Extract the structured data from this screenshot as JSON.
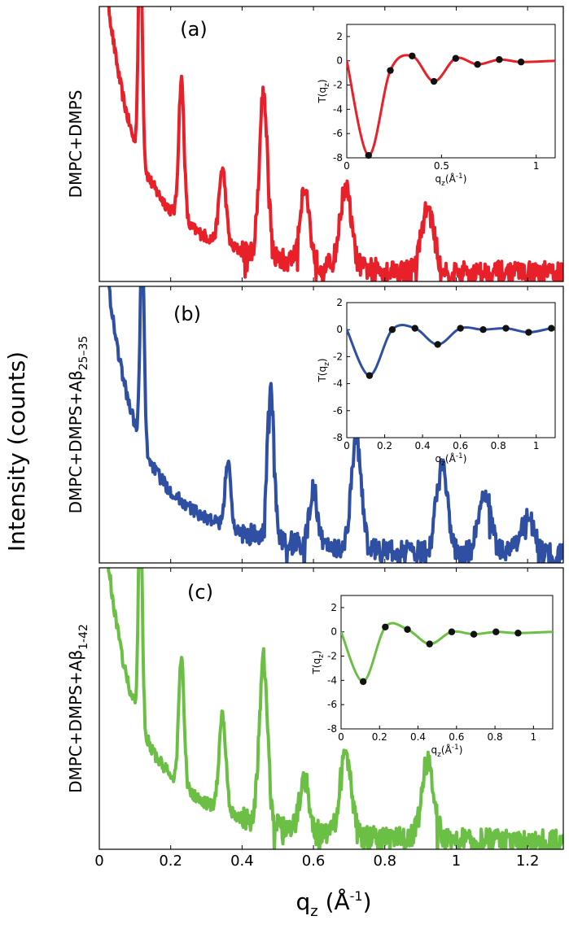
{
  "figure": {
    "ylabel": "Intensity (counts)",
    "xlabel_main": "q",
    "xlabel_sub": "z",
    "xlabel_unit_open": " (Å",
    "xlabel_unit_sup": "-1",
    "xlabel_unit_close": ")"
  },
  "chart_data": [
    {
      "panel": "a",
      "type": "line",
      "label": "(a)",
      "sample": "DMPC+DMPS",
      "sample_sub": "",
      "color": "#e8202a",
      "xlim": [
        0,
        1.3
      ],
      "xticks": [
        0,
        0.2,
        0.4,
        0.6,
        0.8,
        1,
        1.2
      ],
      "xtick_labels": [],
      "peaks": [
        0.115,
        0.23,
        0.345,
        0.46,
        0.575,
        0.69,
        0.92
      ],
      "peak_heights": [
        0.92,
        0.56,
        0.3,
        0.66,
        0.3,
        0.32,
        0.25
      ],
      "inset": {
        "type": "line+scatter",
        "xlabel_main": "q",
        "xlabel_sub": "z",
        "xlabel_unit": "(Å",
        "xlabel_unit_sup": "-1",
        "xlabel_unit_close": ")",
        "ylabel_main": "T(q",
        "ylabel_sub": "z",
        "ylabel_close": ")",
        "xlim": [
          0,
          1.1
        ],
        "ylim": [
          -8,
          3
        ],
        "xticks": [
          0,
          0.5,
          1
        ],
        "xtick_labels": [
          "0",
          "0.5",
          "1"
        ],
        "yticks": [
          2,
          0,
          -2,
          -4,
          -6,
          -8
        ],
        "ytick_labels": [
          "2",
          "0",
          "-2",
          "-4",
          "-6",
          "-8"
        ],
        "points_x": [
          0.115,
          0.23,
          0.345,
          0.46,
          0.575,
          0.69,
          0.805,
          0.92
        ],
        "points_y": [
          -7.8,
          -0.8,
          0.4,
          -1.7,
          0.2,
          -0.3,
          0.1,
          -0.1
        ]
      }
    },
    {
      "panel": "b",
      "type": "line",
      "label": "(b)",
      "sample": "DMPC+DMPS+Aβ",
      "sample_sub": "25–35",
      "color": "#2f4fa3",
      "xlim": [
        0,
        1.3
      ],
      "xticks": [
        0,
        0.2,
        0.4,
        0.6,
        0.8,
        1,
        1.2
      ],
      "xtick_labels": [],
      "peaks": [
        0.12,
        0.36,
        0.48,
        0.6,
        0.72,
        0.96,
        1.08,
        1.2
      ],
      "peak_heights": [
        0.82,
        0.27,
        0.61,
        0.22,
        0.46,
        0.36,
        0.24,
        0.15
      ],
      "inset": {
        "type": "line+scatter",
        "xlabel_main": "q",
        "xlabel_sub": "z",
        "xlabel_unit": "(Å",
        "xlabel_unit_sup": "-1",
        "xlabel_unit_close": ")",
        "ylabel_main": "T(q",
        "ylabel_sub": "z",
        "ylabel_close": ")",
        "xlim": [
          0,
          1.1
        ],
        "ylim": [
          -8,
          2
        ],
        "xticks": [
          0,
          0.2,
          0.4,
          0.6,
          0.8,
          1
        ],
        "xtick_labels": [
          "0",
          "0.2",
          "0.4",
          "0.6",
          "0.8",
          "1"
        ],
        "yticks": [
          2,
          0,
          -2,
          -4,
          -6,
          -8
        ],
        "ytick_labels": [
          "2",
          "0",
          "-2",
          "-4",
          "-6",
          "-8"
        ],
        "points_x": [
          0.12,
          0.24,
          0.36,
          0.48,
          0.6,
          0.72,
          0.84,
          0.96,
          1.08
        ],
        "points_y": [
          -3.4,
          0.0,
          0.1,
          -1.1,
          0.1,
          0.0,
          0.1,
          -0.2,
          0.1
        ]
      }
    },
    {
      "panel": "c",
      "type": "line",
      "label": "(c)",
      "sample": "DMPC+DMPS+Aβ",
      "sample_sub": "1-42",
      "color": "#6cbf45",
      "xlim": [
        0,
        1.3
      ],
      "xticks": [
        0,
        0.2,
        0.4,
        0.6,
        0.8,
        1,
        1.2
      ],
      "xtick_labels": [
        "0",
        "0.2",
        "0.4",
        "0.6",
        "0.8",
        "1",
        "1.2"
      ],
      "peaks": [
        0.115,
        0.23,
        0.345,
        0.46,
        0.575,
        0.69,
        0.92
      ],
      "peak_heights": [
        0.86,
        0.5,
        0.38,
        0.64,
        0.2,
        0.32,
        0.3
      ],
      "inset": {
        "type": "line+scatter",
        "xlabel_main": "q",
        "xlabel_sub": "z",
        "xlabel_unit": "(Å",
        "xlabel_unit_sup": "-1",
        "xlabel_unit_close": ")",
        "ylabel_main": "T(q",
        "ylabel_sub": "z",
        "ylabel_close": ")",
        "xlim": [
          0,
          1.1
        ],
        "ylim": [
          -8,
          3
        ],
        "xticks": [
          0,
          0.2,
          0.4,
          0.6,
          0.8,
          1
        ],
        "xtick_labels": [
          "0",
          "0.2",
          "0.4",
          "0.6",
          "0.8",
          "1"
        ],
        "yticks": [
          2,
          0,
          -2,
          -4,
          -6,
          -8
        ],
        "ytick_labels": [
          "2",
          "0",
          "-2",
          "-4",
          "-6",
          "-8"
        ],
        "points_x": [
          0.115,
          0.23,
          0.345,
          0.46,
          0.575,
          0.69,
          0.805,
          0.92
        ],
        "points_y": [
          -4.1,
          0.4,
          0.2,
          -1.0,
          0.0,
          -0.2,
          0.0,
          -0.1
        ]
      }
    }
  ]
}
